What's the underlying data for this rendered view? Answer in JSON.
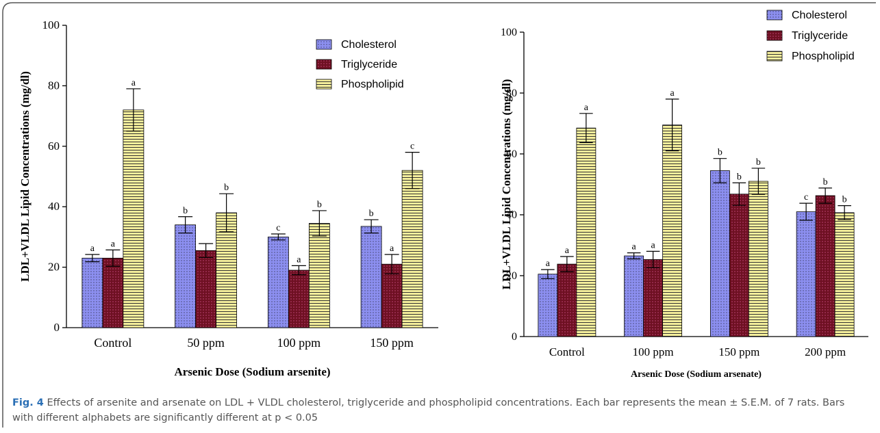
{
  "chart_data": [
    {
      "type": "bar",
      "ylabel": "LDL+VLDL Lipid Concentrations (mg/dl)",
      "xlabel": "Arsenic Dose (Sodium arsenite)",
      "categories": [
        "Control",
        "50 ppm",
        "100 ppm",
        "150 ppm"
      ],
      "series": [
        {
          "name": "Cholesterol",
          "color": "#8c8ff0",
          "values": [
            23,
            34,
            30,
            33.5
          ],
          "errors": [
            1.2,
            2.7,
            1,
            2.2
          ],
          "letters": [
            "a",
            "b",
            "c",
            "b"
          ]
        },
        {
          "name": "Triglyceride",
          "color": "#6e1022",
          "values": [
            23,
            25.5,
            19,
            21
          ],
          "errors": [
            2.7,
            2.3,
            1.5,
            3.2
          ],
          "letters": [
            "a",
            null,
            "a",
            "a"
          ]
        },
        {
          "name": "Phospholipid",
          "color": "#f6f09c",
          "values": [
            72,
            38,
            34.5,
            52
          ],
          "errors": [
            7,
            6.3,
            4.2,
            6
          ],
          "letters": [
            "a",
            "b",
            "b",
            "c"
          ]
        }
      ],
      "ylim": [
        0,
        100
      ],
      "yticks": [
        0,
        20,
        40,
        60,
        80,
        100
      ],
      "legend": "upper right"
    },
    {
      "type": "bar",
      "ylabel": "LDL+VLDL Lipid Concentrations (mg/dl)",
      "xlabel": "Arsenic Dose (Sodium arsenate)",
      "categories": [
        "Control",
        "100 ppm",
        "150 ppm",
        "200 ppm"
      ],
      "series": [
        {
          "name": "Cholesterol",
          "color": "#8c8ff0",
          "values": [
            20.5,
            26.5,
            54.5,
            41
          ],
          "errors": [
            1.5,
            1,
            4,
            2.8
          ],
          "letters": [
            "a",
            "a",
            "b",
            "c"
          ]
        },
        {
          "name": "Triglyceride",
          "color": "#6e1022",
          "values": [
            23.8,
            25.3,
            46.8,
            46.3
          ],
          "errors": [
            2.5,
            2.7,
            3.7,
            2.5
          ],
          "letters": [
            "a",
            "a",
            "b",
            "b"
          ]
        },
        {
          "name": "Phospholipid",
          "color": "#f6f09c",
          "values": [
            68.5,
            69.5,
            51,
            40.7
          ],
          "errors": [
            4.8,
            8.5,
            4.3,
            2.3
          ],
          "letters": [
            "a",
            "a",
            "b",
            "b"
          ]
        }
      ],
      "ylim": [
        0,
        100
      ],
      "yticks": [
        0,
        20,
        40,
        60,
        80,
        100
      ],
      "legend": "upper right"
    }
  ],
  "caption": {
    "label": "Fig. 4",
    "text": "Effects of arsenite and arsenate on LDL + VLDL cholesterol, triglyceride and phospholipid concentrations. Each bar represents the mean ± S.E.M. of 7 rats. Bars with different alphabets are significantly different at p < 0.05"
  }
}
